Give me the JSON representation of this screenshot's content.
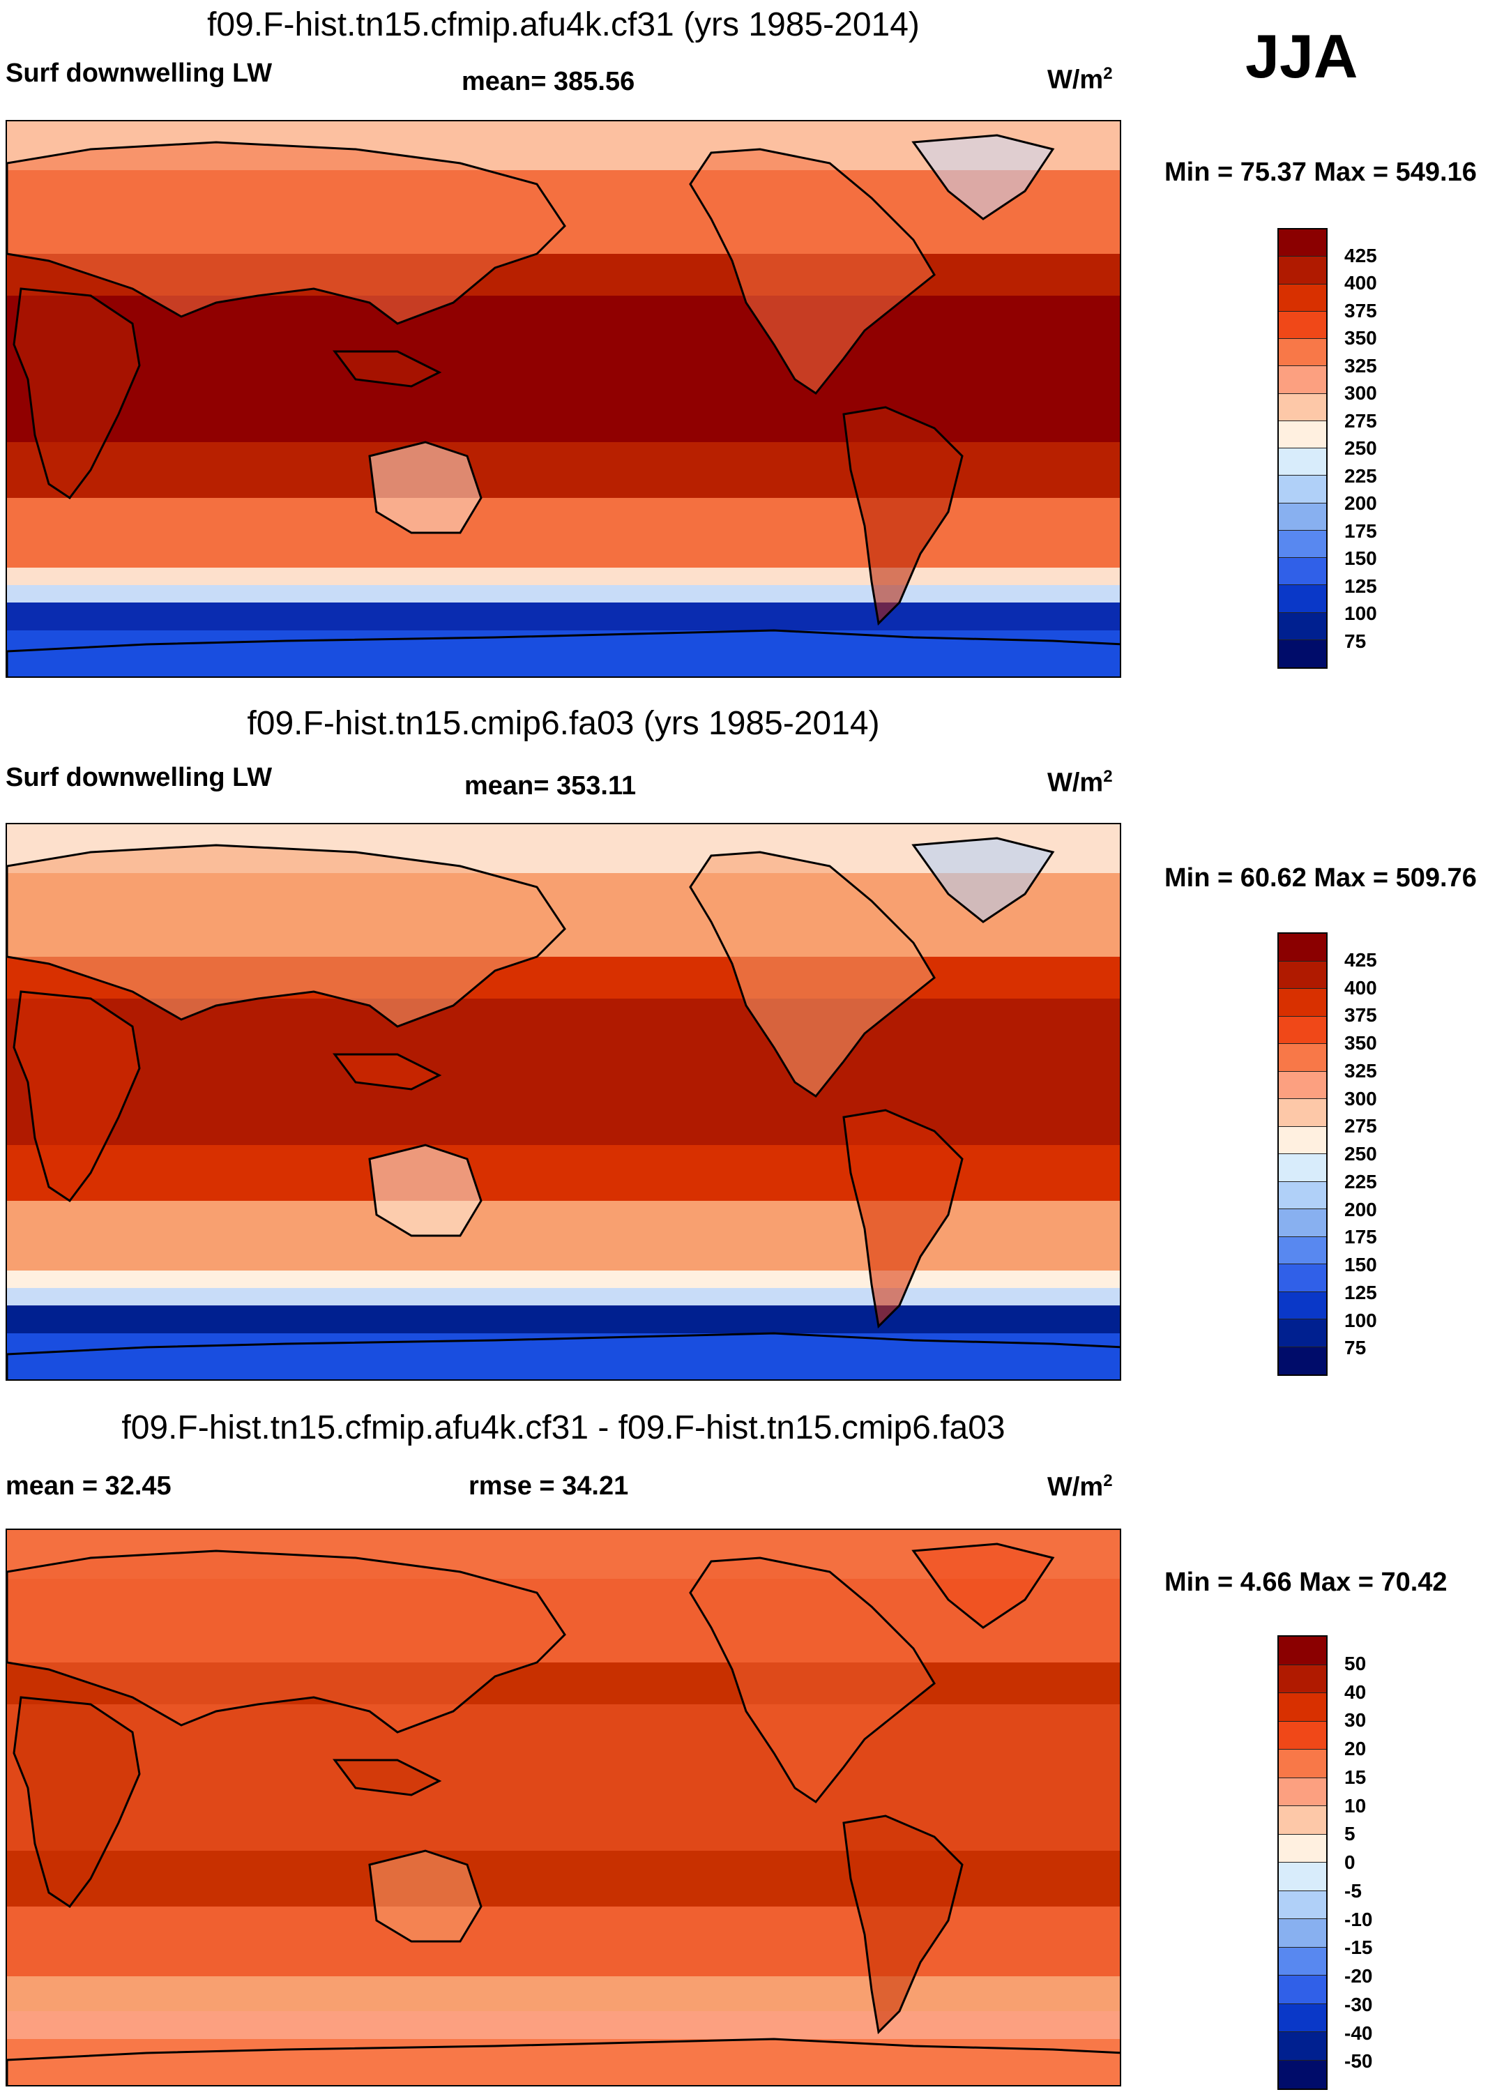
{
  "season": "JJA",
  "panels": [
    {
      "title": "f09.F-hist.tn15.cfmip.afu4k.cf31 (yrs 1985-2014)",
      "left_label": "Surf downwelling LW",
      "center_label": "mean= 385.56",
      "units_base": "W/m",
      "units_exp": "2",
      "minmax": "Min =  75.37 Max = 549.16",
      "colorbar": {
        "labels": [
          "425",
          "400",
          "375",
          "350",
          "325",
          "300",
          "275",
          "250",
          "225",
          "200",
          "175",
          "150",
          "125",
          "100",
          "75"
        ],
        "colors": [
          "#8b0000",
          "#b01a00",
          "#d83000",
          "#f04818",
          "#f87848",
          "#fca080",
          "#fdc8a8",
          "#fff0e0",
          "#d8ecfb",
          "#b0d0f8",
          "#88b0f0",
          "#5888f0",
          "#3060e8",
          "#0a38c8",
          "#002090",
          "#000c6a"
        ]
      }
    },
    {
      "title": "f09.F-hist.tn15.cmip6.fa03 (yrs 1985-2014)",
      "left_label": "Surf downwelling LW",
      "center_label": "mean= 353.11",
      "units_base": "W/m",
      "units_exp": "2",
      "minmax": "Min =  60.62 Max = 509.76",
      "colorbar": {
        "labels": [
          "425",
          "400",
          "375",
          "350",
          "325",
          "300",
          "275",
          "250",
          "225",
          "200",
          "175",
          "150",
          "125",
          "100",
          "75"
        ],
        "colors": [
          "#8b0000",
          "#b01a00",
          "#d83000",
          "#f04818",
          "#f87848",
          "#fca080",
          "#fdc8a8",
          "#fff0e0",
          "#d8ecfb",
          "#b0d0f8",
          "#88b0f0",
          "#5888f0",
          "#3060e8",
          "#0a38c8",
          "#002090",
          "#000c6a"
        ]
      }
    },
    {
      "title": "f09.F-hist.tn15.cfmip.afu4k.cf31 - f09.F-hist.tn15.cmip6.fa03",
      "left_label": "mean =  32.45",
      "center_label": "rmse =  34.21",
      "units_base": "W/m",
      "units_exp": "2",
      "minmax": "Min =   4.66 Max =  70.42",
      "colorbar": {
        "labels": [
          "50",
          "40",
          "30",
          "20",
          "15",
          "10",
          "5",
          "0",
          "-5",
          "-10",
          "-15",
          "-20",
          "-30",
          "-40",
          "-50"
        ],
        "colors": [
          "#8b0000",
          "#b01a00",
          "#d83000",
          "#f04818",
          "#f87848",
          "#fca080",
          "#fdc8a8",
          "#fff0e0",
          "#d8ecfb",
          "#b0d0f8",
          "#88b0f0",
          "#5888f0",
          "#3060e8",
          "#0a38c8",
          "#002090",
          "#000c6a"
        ]
      }
    }
  ],
  "map_palettes": {
    "p1": {
      "polar": "#fcc0a0",
      "mid": "#f47040",
      "trop": "#900000",
      "trop2": "#b82000",
      "band1": "#fde0cc",
      "band2": "#c8dcf8",
      "ice": "#1a4ee0",
      "ice2": "#0a2cb0",
      "green": "#c8d8f8"
    },
    "p2": {
      "polar": "#fde0cc",
      "mid": "#f8a070",
      "trop": "#b01a00",
      "trop2": "#d83000",
      "band1": "#fff0e0",
      "band2": "#c8dcf8",
      "ice": "#1a4ee0",
      "ice2": "#002090",
      "green": "#b0d0f8"
    },
    "p3": {
      "polar": "#f47040",
      "mid": "#f06030",
      "trop": "#e04818",
      "trop2": "#c83000",
      "band1": "#f8a070",
      "band2": "#f8a070",
      "ice": "#f87848",
      "ice2": "#fca080",
      "green": "#f04818"
    }
  }
}
